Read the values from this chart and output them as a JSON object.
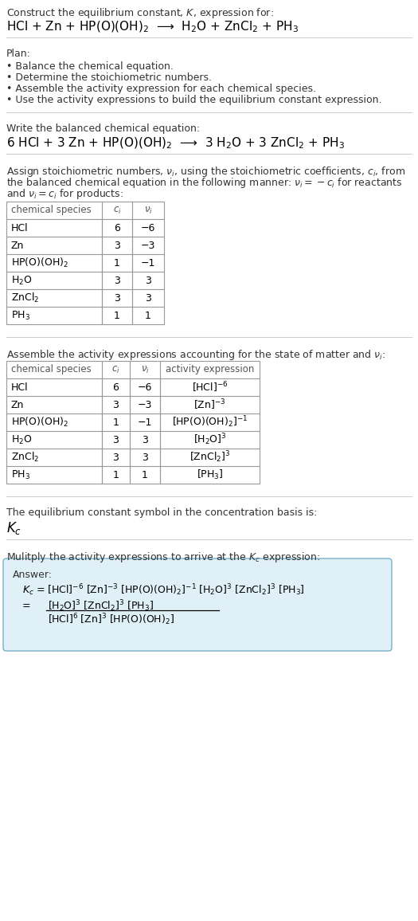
{
  "bg_color": "#ffffff",
  "text_color": "#000000",
  "gray_text": "#444444",
  "title_line1": "Construct the equilibrium constant, $K$, expression for:",
  "title_line2": "HCl + Zn + HP(O)(OH)$_2$  ⟶  H$_2$O + ZnCl$_2$ + PH$_3$",
  "plan_header": "Plan:",
  "plan_items": [
    "• Balance the chemical equation.",
    "• Determine the stoichiometric numbers.",
    "• Assemble the activity expression for each chemical species.",
    "• Use the activity expressions to build the equilibrium constant expression."
  ],
  "balanced_eq_header": "Write the balanced chemical equation:",
  "balanced_eq": "6 HCl + 3 Zn + HP(O)(OH)$_2$  ⟶  3 H$_2$O + 3 ZnCl$_2$ + PH$_3$",
  "stoich_lines": [
    "Assign stoichiometric numbers, $\\nu_i$, using the stoichiometric coefficients, $c_i$, from",
    "the balanced chemical equation in the following manner: $\\nu_i = -c_i$ for reactants",
    "and $\\nu_i = c_i$ for products:"
  ],
  "table1_headers": [
    "chemical species",
    "$c_i$",
    "$\\nu_i$"
  ],
  "table1_data": [
    [
      "HCl",
      "6",
      "−6"
    ],
    [
      "Zn",
      "3",
      "−3"
    ],
    [
      "HP(O)(OH)$_2$",
      "1",
      "−1"
    ],
    [
      "H$_2$O",
      "3",
      "3"
    ],
    [
      "ZnCl$_2$",
      "3",
      "3"
    ],
    [
      "PH$_3$",
      "1",
      "1"
    ]
  ],
  "activity_header": "Assemble the activity expressions accounting for the state of matter and $\\nu_i$:",
  "table2_headers": [
    "chemical species",
    "$c_i$",
    "$\\nu_i$",
    "activity expression"
  ],
  "table2_data": [
    [
      "HCl",
      "6",
      "−6",
      "[HCl]$^{-6}$"
    ],
    [
      "Zn",
      "3",
      "−3",
      "[Zn]$^{-3}$"
    ],
    [
      "HP(O)(OH)$_2$",
      "1",
      "−1",
      "[HP(O)(OH)$_2$]$^{-1}$"
    ],
    [
      "H$_2$O",
      "3",
      "3",
      "[H$_2$O]$^3$"
    ],
    [
      "ZnCl$_2$",
      "3",
      "3",
      "[ZnCl$_2$]$^3$"
    ],
    [
      "PH$_3$",
      "1",
      "1",
      "[PH$_3$]"
    ]
  ],
  "kc_header": "The equilibrium constant symbol in the concentration basis is:",
  "kc_symbol": "$K_c$",
  "multiply_header": "Mulitply the activity expressions to arrive at the $K_c$ expression:",
  "answer_box_color": "#dff0f7",
  "answer_box_border": "#7ab0c8",
  "answer_label": "Answer:",
  "answer_line1": "$K_c$ = [HCl]$^{-6}$ [Zn]$^{-3}$ [HP(O)(OH)$_2$]$^{-1}$ [H$_2$O]$^3$ [ZnCl$_2$]$^3$ [PH$_3$]",
  "answer_line2_num": "[H$_2$O]$^3$ [ZnCl$_2$]$^3$ [PH$_3$]",
  "answer_line2_den": "[HCl]$^6$ [Zn]$^3$ [HP(O)(OH)$_2$]",
  "fs": 9.0,
  "fs_large": 11.0,
  "fs_small": 8.5,
  "fs_kc": 12.0,
  "table_border": "#999999",
  "sep_line": "#cccccc"
}
